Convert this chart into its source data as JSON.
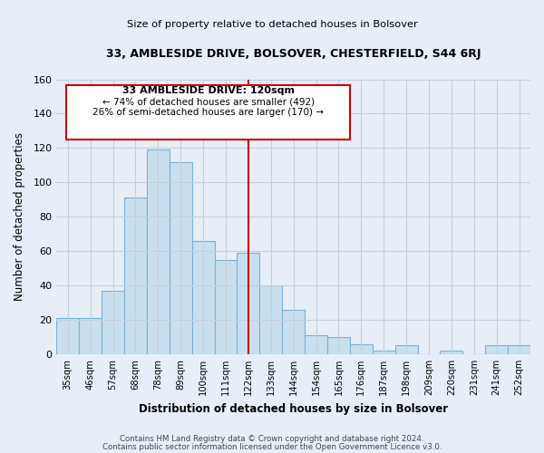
{
  "title1": "33, AMBLESIDE DRIVE, BOLSOVER, CHESTERFIELD, S44 6RJ",
  "title2": "Size of property relative to detached houses in Bolsover",
  "xlabel": "Distribution of detached houses by size in Bolsover",
  "ylabel": "Number of detached properties",
  "bar_labels": [
    "35sqm",
    "46sqm",
    "57sqm",
    "68sqm",
    "78sqm",
    "89sqm",
    "100sqm",
    "111sqm",
    "122sqm",
    "133sqm",
    "144sqm",
    "154sqm",
    "165sqm",
    "176sqm",
    "187sqm",
    "198sqm",
    "209sqm",
    "220sqm",
    "231sqm",
    "241sqm",
    "252sqm"
  ],
  "bar_values": [
    21,
    21,
    37,
    91,
    119,
    112,
    66,
    55,
    59,
    40,
    26,
    11,
    10,
    6,
    2,
    5,
    0,
    2,
    0,
    5,
    5
  ],
  "highlight_index": 8,
  "bar_color": "#c8dff0",
  "bar_edge_color": "#7ab0d4",
  "highlight_line_color": "#cc0000",
  "annotation_box_edge": "#cc0000",
  "annotation_title": "33 AMBLESIDE DRIVE: 120sqm",
  "annotation_line1": "← 74% of detached houses are smaller (492)",
  "annotation_line2": "26% of semi-detached houses are larger (170) →",
  "ylim": [
    0,
    160
  ],
  "yticks": [
    0,
    20,
    40,
    60,
    80,
    100,
    120,
    140,
    160
  ],
  "footer1": "Contains HM Land Registry data © Crown copyright and database right 2024.",
  "footer2": "Contains public sector information licensed under the Open Government Licence v3.0.",
  "bg_color": "#e8eef8",
  "plot_bg_color": "#e8eef8",
  "grid_color": "#c5cfe0"
}
